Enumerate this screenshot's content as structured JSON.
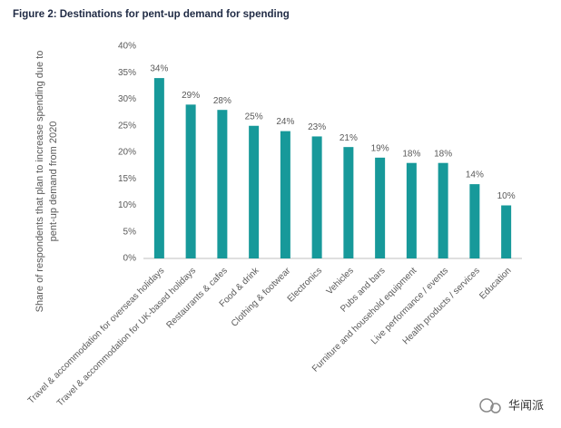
{
  "chart_data": {
    "type": "bar",
    "title": "Figure 2: Destinations for pent-up demand for spending",
    "y_label": [
      "Share of respondents that plan to increase spending due to",
      "pent-up demand from 2020"
    ],
    "categories": [
      "Travel & accommodation for overseas holidays",
      "Travel & accommodation for UK-based holidays",
      "Restaurants & cafes",
      "Food & drink",
      "Clothing & footwear",
      "Electronics",
      "Vehicles",
      "Pubs and bars",
      "Furniture and household equipment",
      "Live performance / events",
      "Health products / services",
      "Education"
    ],
    "values": [
      34,
      29,
      28,
      25,
      24,
      23,
      21,
      19,
      18,
      18,
      14,
      10
    ],
    "value_labels": [
      "34%",
      "29%",
      "28%",
      "25%",
      "24%",
      "23%",
      "21%",
      "19%",
      "18%",
      "18%",
      "14%",
      "10%"
    ],
    "color": "#17999a",
    "ylim": [
      0,
      40
    ],
    "yticks": [
      {
        "value": 0,
        "label": "0%"
      },
      {
        "value": 5,
        "label": "5%"
      },
      {
        "value": 10,
        "label": "10%"
      },
      {
        "value": 15,
        "label": "15%"
      },
      {
        "value": 20,
        "label": "20%"
      },
      {
        "value": 25,
        "label": "25%"
      },
      {
        "value": 30,
        "label": "30%"
      },
      {
        "value": 35,
        "label": "35%"
      },
      {
        "value": 40,
        "label": "40%"
      }
    ],
    "grid": false,
    "watermark": "华闻派"
  }
}
